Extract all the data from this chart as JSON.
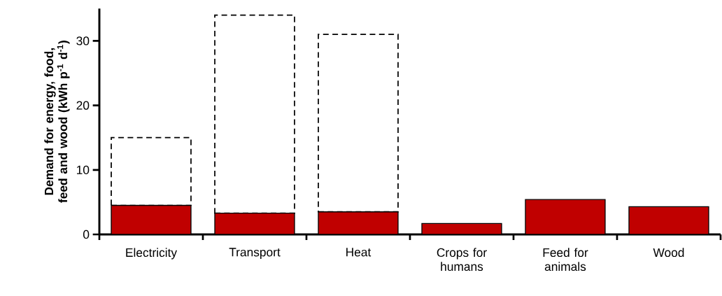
{
  "chart_data": {
    "type": "bar",
    "stacked": true,
    "ylabel": "Demand for energy, food, feed and wood (kWh p$^{-1}$ d$^{-1}$)",
    "categories": [
      "Electricity",
      "Transport",
      "Heat",
      "Crops for humans",
      "Feed for animals",
      "Wood"
    ],
    "series": [
      {
        "color": "#c00000",
        "values": [
          4.5,
          3.3,
          3.5,
          1.7,
          5.4,
          4.3
        ]
      },
      {
        "color": "#000000",
        "line_style": "dashed",
        "values": [
          10.5,
          30.7,
          27.5,
          null,
          null,
          null
        ]
      }
    ],
    "ylim": [
      0,
      35
    ],
    "yticks": [
      0,
      10,
      20,
      30
    ],
    "grid": false,
    "legend": false
  }
}
